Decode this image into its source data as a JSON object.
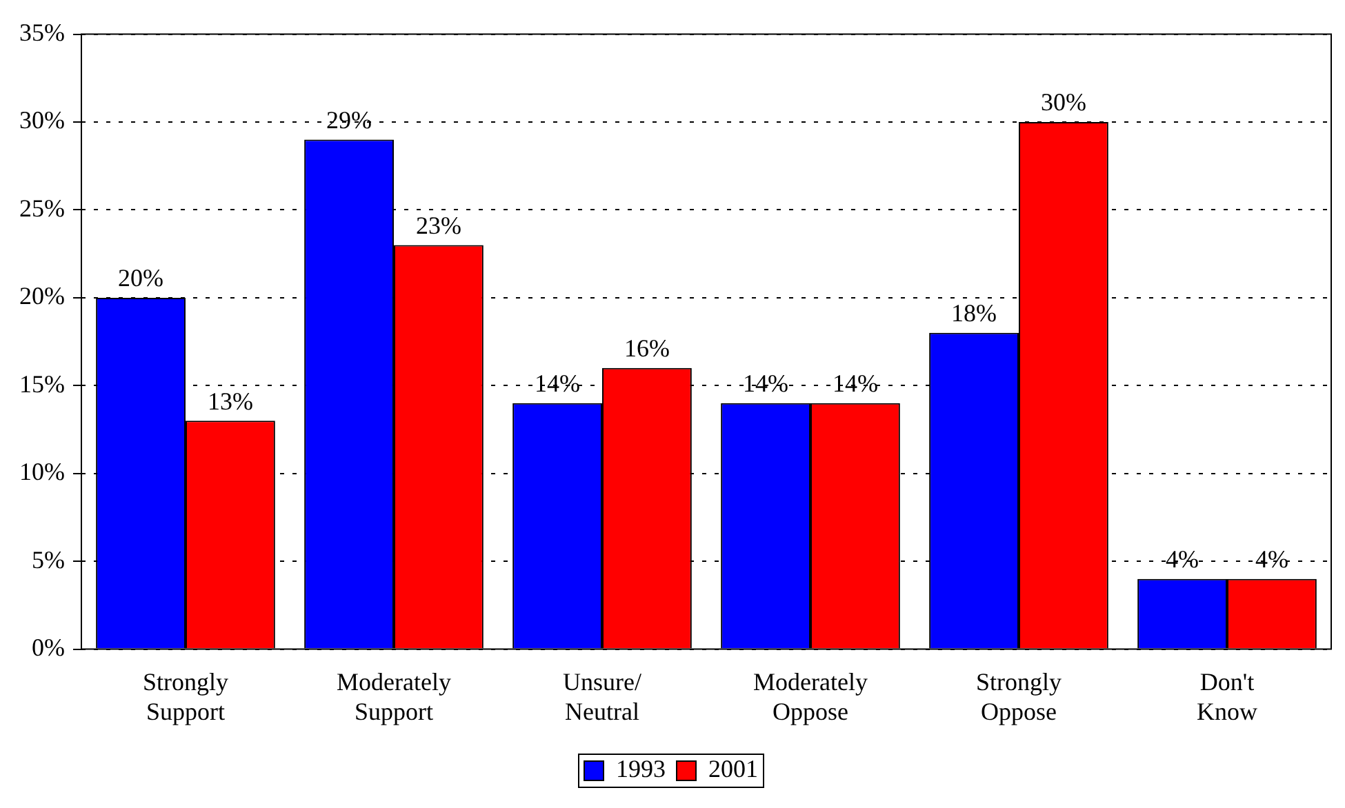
{
  "chart_data": {
    "type": "bar",
    "categories": [
      "Strongly Support",
      "Moderately Support",
      "Unsure/ Neutral",
      "Moderately Oppose",
      "Strongly Oppose",
      "Don't Know"
    ],
    "series": [
      {
        "name": "1993",
        "color": "#0000ff",
        "values": [
          20,
          29,
          14,
          14,
          18,
          4
        ],
        "value_labels": [
          "20%",
          "29%",
          "14%",
          "14%",
          "18%",
          "4%"
        ]
      },
      {
        "name": "2001",
        "color": "#ff0000",
        "values": [
          13,
          23,
          16,
          14,
          30,
          4
        ],
        "value_labels": [
          "13%",
          "23%",
          "16%",
          "14%",
          "30%",
          "4%"
        ]
      }
    ],
    "ylim": [
      0,
      35
    ],
    "yticks": [
      {
        "value": 0,
        "label": "0%"
      },
      {
        "value": 5,
        "label": "5%"
      },
      {
        "value": 10,
        "label": "10%"
      },
      {
        "value": 15,
        "label": "15%"
      },
      {
        "value": 20,
        "label": "20%"
      },
      {
        "value": 25,
        "label": "25%"
      },
      {
        "value": 30,
        "label": "30%"
      },
      {
        "value": 35,
        "label": "35%"
      }
    ],
    "grid": "y",
    "legend": "bottom"
  }
}
